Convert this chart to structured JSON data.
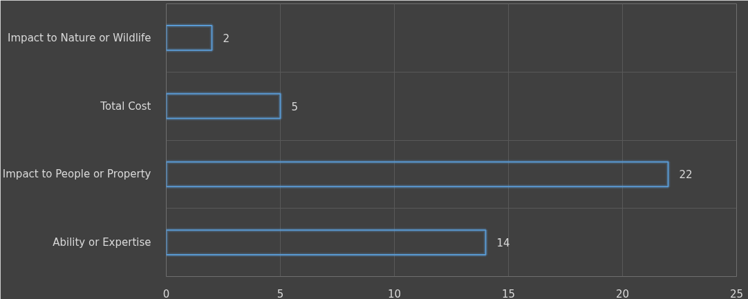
{
  "chart_data": {
    "type": "bar",
    "orientation": "horizontal",
    "categories": [
      "Impact to Nature or Wildlife",
      "Total Cost",
      "Impact to People or Property",
      "Ability or Expertise"
    ],
    "values": [
      2,
      5,
      22,
      14
    ],
    "color": "#5b9bd5",
    "xlim": [
      0,
      25
    ],
    "xticks": [
      0,
      5,
      10,
      15,
      20,
      25
    ],
    "grid": true,
    "data_labels": true
  }
}
